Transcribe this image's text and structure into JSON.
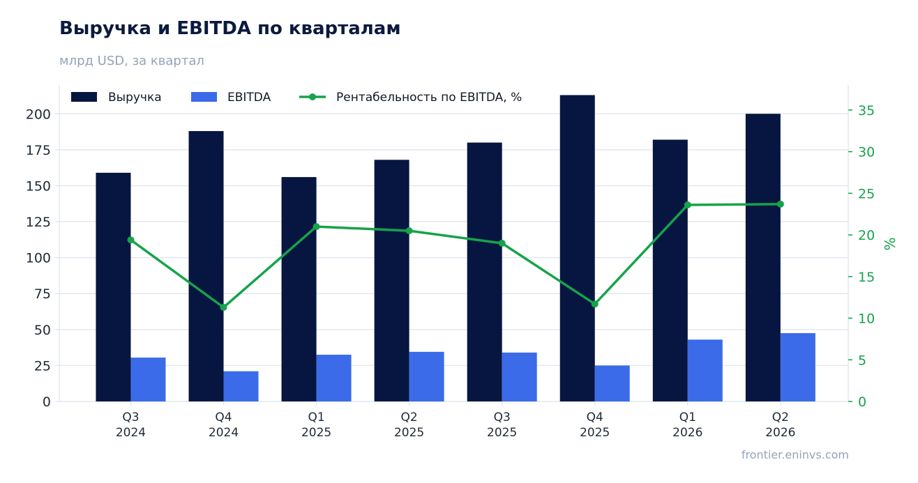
{
  "header": {
    "title": "Выручка и EBITDA по кварталам",
    "subtitle": "млрд USD, за квартал"
  },
  "footer": {
    "credit": "frontier.eninvs.com"
  },
  "colors": {
    "revenue": "#071640",
    "ebitda": "#3b6be8",
    "margin": "#16a34a",
    "grid": "#e2e8f0",
    "axis_text": "#1f2937"
  },
  "chart_data": {
    "type": "bar",
    "categories": [
      "Q3\n2024",
      "Q4\n2024",
      "Q1\n2025",
      "Q2\n2025",
      "Q3\n2025",
      "Q4\n2025",
      "Q1\n2026",
      "Q2\n2026"
    ],
    "series": [
      {
        "name": "Выручка",
        "type": "bar",
        "axis": "left",
        "color": "#071640",
        "values": [
          159,
          188,
          156,
          168,
          180,
          213,
          182,
          200
        ]
      },
      {
        "name": "EBITDA",
        "type": "bar",
        "axis": "left",
        "color": "#3b6be8",
        "values": [
          30.5,
          21,
          32.5,
          34.5,
          34,
          25,
          43,
          47.5
        ]
      },
      {
        "name": "Рентабельность по EBITDA, %",
        "type": "line",
        "axis": "right",
        "color": "#16a34a",
        "values": [
          19.4,
          11.3,
          21.0,
          20.5,
          19.0,
          11.7,
          23.6,
          23.7
        ]
      }
    ],
    "ylim": [
      0,
      220
    ],
    "yticks": [
      0,
      25,
      50,
      75,
      100,
      125,
      150,
      175,
      200
    ],
    "y2label": "%",
    "y2lim": [
      0,
      38
    ],
    "y2ticks": [
      0,
      5,
      10,
      15,
      20,
      25,
      30,
      35
    ],
    "grid": "horizontal",
    "legend": "top-left"
  }
}
